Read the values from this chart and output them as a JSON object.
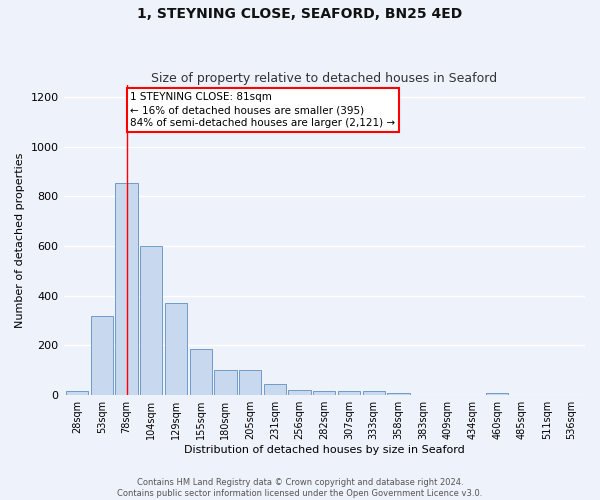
{
  "title": "1, STEYNING CLOSE, SEAFORD, BN25 4ED",
  "subtitle": "Size of property relative to detached houses in Seaford",
  "xlabel": "Distribution of detached houses by size in Seaford",
  "ylabel": "Number of detached properties",
  "bins": [
    "28sqm",
    "53sqm",
    "78sqm",
    "104sqm",
    "129sqm",
    "155sqm",
    "180sqm",
    "205sqm",
    "231sqm",
    "256sqm",
    "282sqm",
    "307sqm",
    "333sqm",
    "358sqm",
    "383sqm",
    "409sqm",
    "434sqm",
    "460sqm",
    "485sqm",
    "511sqm",
    "536sqm"
  ],
  "bar_values": [
    15,
    320,
    855,
    600,
    370,
    185,
    100,
    100,
    45,
    20,
    18,
    16,
    17,
    8,
    0,
    0,
    0,
    10,
    0,
    0,
    0
  ],
  "bar_color": "#c8d8ee",
  "bar_edge_color": "#6090c0",
  "annotation_line1": "1 STEYNING CLOSE: 81sqm",
  "annotation_line2": "← 16% of detached houses are smaller (395)",
  "annotation_line3": "84% of semi-detached houses are larger (2,121) →",
  "redline_bin_index": 2,
  "ylim": [
    0,
    1250
  ],
  "yticks": [
    0,
    200,
    400,
    600,
    800,
    1000,
    1200
  ],
  "footer_line1": "Contains HM Land Registry data © Crown copyright and database right 2024.",
  "footer_line2": "Contains public sector information licensed under the Open Government Licence v3.0.",
  "background_color": "#eef2fa",
  "grid_color": "#ffffff",
  "title_fontsize": 10,
  "subtitle_fontsize": 9,
  "ylabel_fontsize": 8,
  "xlabel_fontsize": 8,
  "tick_fontsize": 7,
  "footer_fontsize": 6,
  "ann_fontsize": 7.5
}
